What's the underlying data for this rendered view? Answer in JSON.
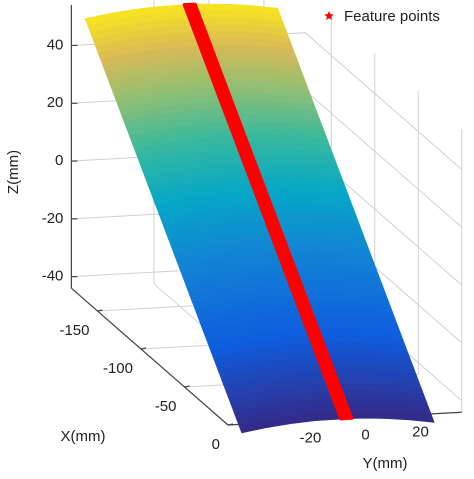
{
  "chart_data": {
    "type": "surface3d",
    "zlabel": "Z(mm)",
    "xlabel": "X(mm)",
    "ylabel": "Y(mm)",
    "xlim": [
      -180,
      0
    ],
    "ylim": [
      -50,
      35
    ],
    "zlim": [
      -44,
      54
    ],
    "xticks": [
      -150,
      -100,
      -50,
      0
    ],
    "yticks": [
      -20,
      0,
      20
    ],
    "zticks": [
      40,
      20,
      0,
      -20,
      -40
    ],
    "grid": true,
    "surface_x": [
      -180,
      0
    ],
    "surface_y": [
      -45,
      25
    ],
    "surface_z": [
      52,
      -44
    ],
    "feature_points": {
      "name": "Feature points",
      "color": "#ff0000",
      "y": -7
    },
    "legend": "top-right"
  }
}
